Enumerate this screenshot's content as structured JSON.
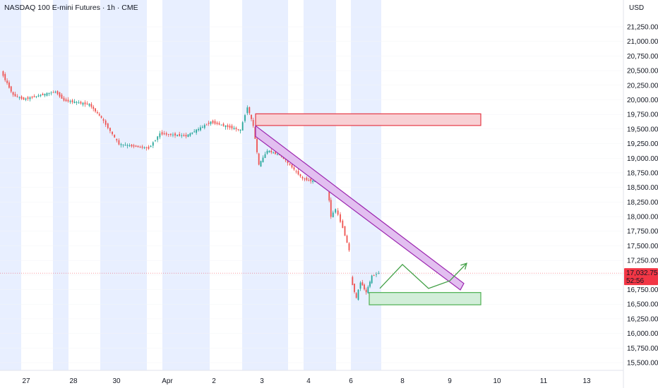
{
  "header": {
    "title": "NASDAQ 100 E-mini Futures · 1h · CME",
    "currency": "USD"
  },
  "price_label": {
    "price": "17,032.75",
    "countdown": "52:56",
    "color": "#f23645"
  },
  "colors": {
    "up": "#26a69a",
    "down": "#ef5350",
    "session_band": "#e8efff",
    "resistance_fill": "#f8d0d4",
    "resistance_stroke": "#e53945",
    "channel_fill": "#e2bff0",
    "channel_stroke": "#9c27b0",
    "support_fill": "#d2eed9",
    "support_stroke": "#4caf50",
    "projection": "#43a047"
  },
  "chart_data": {
    "type": "candlestick",
    "title": "NASDAQ 100 E-mini Futures · 1h · CME",
    "y_axis": {
      "label": "USD",
      "ticks": [
        21250,
        21000,
        20750,
        20500,
        20250,
        20000,
        19750,
        19500,
        19250,
        19000,
        18750,
        18500,
        18250,
        18000,
        17750,
        17500,
        17250,
        17000,
        16750,
        16500,
        16250,
        16000,
        15750,
        15500
      ],
      "tick_labels": [
        "21,250.00",
        "21,000.00",
        "20,750.00",
        "20,500.00",
        "20,250.00",
        "20,000.00",
        "19,750.00",
        "19,500.00",
        "19,250.00",
        "19,000.00",
        "18,750.00",
        "18,500.00",
        "18,250.00",
        "18,000.00",
        "17,750.00",
        "17,500.00",
        "17,250.00",
        "17,000.00",
        "16,750.00",
        "16,500.00",
        "16,250.00",
        "16,000.00",
        "15,750.00",
        "15,500.00"
      ]
    },
    "x_axis": {
      "ticks": [
        {
          "label": "27",
          "x": 37
        },
        {
          "label": "28",
          "x": 104
        },
        {
          "label": "30",
          "x": 165
        },
        {
          "label": "Apr",
          "x": 237
        },
        {
          "label": "2",
          "x": 303
        },
        {
          "label": "3",
          "x": 371
        },
        {
          "label": "4",
          "x": 437
        },
        {
          "label": "6",
          "x": 497
        },
        {
          "label": "8",
          "x": 570
        },
        {
          "label": "9",
          "x": 637
        },
        {
          "label": "10",
          "x": 704
        },
        {
          "label": "11",
          "x": 770
        },
        {
          "label": "13",
          "x": 831
        }
      ]
    },
    "sessions": [
      [
        0,
        30
      ],
      [
        75,
        97
      ],
      [
        142,
        208
      ],
      [
        230,
        297
      ],
      [
        343,
        408
      ],
      [
        430,
        476
      ],
      [
        497,
        540
      ]
    ],
    "segments": [
      {
        "x0": 3,
        "x1": 20,
        "p0": 20480,
        "p1": 20080
      },
      {
        "x0": 20,
        "x1": 35,
        "p0": 20080,
        "p1": 20010
      },
      {
        "x0": 35,
        "x1": 80,
        "p0": 20010,
        "p1": 20140
      },
      {
        "x0": 80,
        "x1": 92,
        "p0": 20140,
        "p1": 19990
      },
      {
        "x0": 92,
        "x1": 128,
        "p0": 19990,
        "p1": 19920
      },
      {
        "x0": 128,
        "x1": 145,
        "p0": 19920,
        "p1": 19690
      },
      {
        "x0": 145,
        "x1": 170,
        "p0": 19690,
        "p1": 19240
      },
      {
        "x0": 170,
        "x1": 212,
        "p0": 19240,
        "p1": 19170
      },
      {
        "x0": 212,
        "x1": 228,
        "p0": 19170,
        "p1": 19420
      },
      {
        "x0": 228,
        "x1": 265,
        "p0": 19420,
        "p1": 19380
      },
      {
        "x0": 265,
        "x1": 300,
        "p0": 19380,
        "p1": 19620
      },
      {
        "x0": 300,
        "x1": 342,
        "p0": 19620,
        "p1": 19480
      },
      {
        "x0": 342,
        "x1": 352,
        "p0": 19480,
        "p1": 19880
      },
      {
        "x0": 352,
        "x1": 360,
        "p0": 19880,
        "p1": 19550
      },
      {
        "x0": 360,
        "x1": 368,
        "p0": 19550,
        "p1": 18880
      },
      {
        "x0": 368,
        "x1": 380,
        "p0": 18880,
        "p1": 19130
      },
      {
        "x0": 380,
        "x1": 400,
        "p0": 19130,
        "p1": 19040
      },
      {
        "x0": 400,
        "x1": 430,
        "p0": 19040,
        "p1": 18650
      },
      {
        "x0": 430,
        "x1": 465,
        "p0": 18650,
        "p1": 18550
      },
      {
        "x0": 465,
        "x1": 470,
        "p0": 18550,
        "p1": 18000
      },
      {
        "x0": 470,
        "x1": 477,
        "p0": 18000,
        "p1": 18130
      },
      {
        "x0": 477,
        "x1": 487,
        "p0": 18130,
        "p1": 17810
      },
      {
        "x0": 487,
        "x1": 496,
        "p0": 17810,
        "p1": 17420
      },
      {
        "x0": 498,
        "x1": 506,
        "p0": 16950,
        "p1": 16600
      },
      {
        "x0": 506,
        "x1": 512,
        "p0": 16600,
        "p1": 16880
      },
      {
        "x0": 512,
        "x1": 520,
        "p0": 16880,
        "p1": 16700
      },
      {
        "x0": 520,
        "x1": 528,
        "p0": 16700,
        "p1": 16980
      },
      {
        "x0": 528,
        "x1": 538,
        "p0": 16980,
        "p1": 17032.75
      }
    ],
    "annotations": {
      "resistance_zone": {
        "price_top": 19760,
        "price_bottom": 19560,
        "x_start": 362,
        "x_end": 681
      },
      "falling_channel": {
        "start": [
          362,
          19500
        ],
        "end": [
          652,
          16800
        ],
        "width_price": 110
      },
      "support_zone": {
        "price_top": 16700,
        "price_bottom": 16490,
        "x_start": 523,
        "x_end": 681
      },
      "projection_path": [
        [
          538,
          16770
        ],
        [
          570,
          17180
        ],
        [
          607,
          16770
        ],
        [
          637,
          16900
        ],
        [
          661,
          17200
        ]
      ],
      "current_price": 17032.75
    }
  }
}
